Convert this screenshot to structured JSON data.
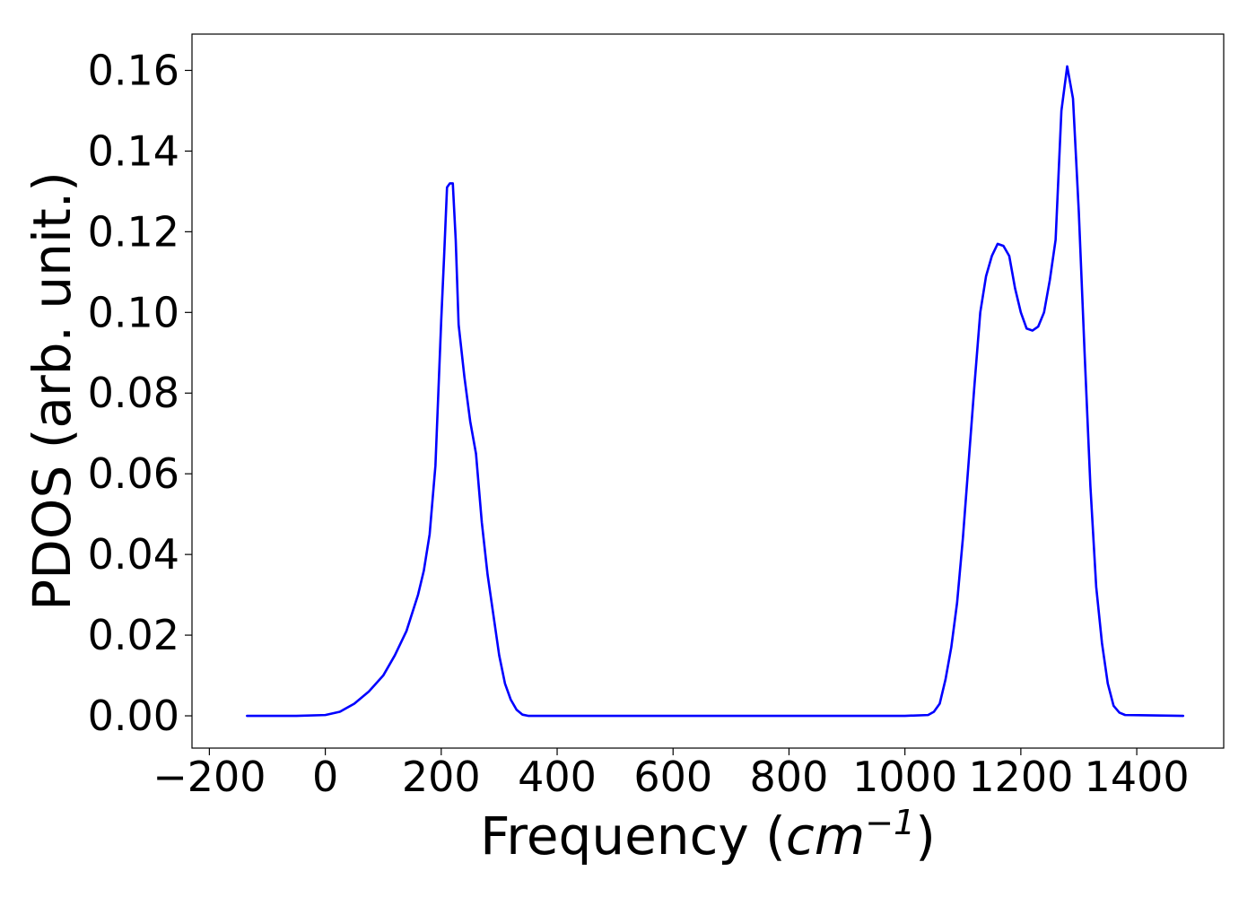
{
  "chart_data": {
    "type": "line",
    "xlabel_prefix": "Frequency (",
    "xlabel_unit": "cm",
    "xlabel_exponent": "−1",
    "xlabel_suffix": ")",
    "ylabel": "PDOS (arb. unit.)",
    "xlim": [
      -230,
      1550
    ],
    "ylim": [
      -0.008,
      0.169
    ],
    "xticks": [
      -200,
      0,
      200,
      400,
      600,
      800,
      1000,
      1200,
      1400
    ],
    "xtick_labels": [
      "−200",
      "0",
      "200",
      "400",
      "600",
      "800",
      "1000",
      "1200",
      "1400"
    ],
    "yticks": [
      0.0,
      0.02,
      0.04,
      0.06,
      0.08,
      0.1,
      0.12,
      0.14,
      0.16
    ],
    "ytick_labels": [
      "0.00",
      "0.02",
      "0.04",
      "0.06",
      "0.08",
      "0.10",
      "0.12",
      "0.14",
      "0.16"
    ],
    "grid": false,
    "colors": {
      "line": "#0000ff",
      "axes": "#000000"
    },
    "series": [
      {
        "x": [
          -135,
          -50,
          0,
          25,
          50,
          75,
          100,
          120,
          140,
          160,
          170,
          180,
          190,
          195,
          200,
          205,
          210,
          215,
          220,
          225,
          230,
          240,
          250,
          260,
          270,
          280,
          290,
          300,
          310,
          320,
          330,
          340,
          350,
          360,
          380,
          500,
          700,
          900,
          1000,
          1040,
          1050,
          1060,
          1070,
          1080,
          1090,
          1100,
          1110,
          1120,
          1130,
          1140,
          1150,
          1160,
          1170,
          1180,
          1190,
          1200,
          1210,
          1220,
          1230,
          1240,
          1250,
          1260,
          1270,
          1280,
          1290,
          1300,
          1310,
          1320,
          1330,
          1340,
          1350,
          1360,
          1370,
          1380,
          1480
        ],
        "y": [
          0.0,
          0.0,
          0.0002,
          0.001,
          0.003,
          0.006,
          0.01,
          0.015,
          0.021,
          0.03,
          0.036,
          0.045,
          0.062,
          0.08,
          0.098,
          0.114,
          0.131,
          0.132,
          0.132,
          0.118,
          0.097,
          0.084,
          0.073,
          0.065,
          0.048,
          0.035,
          0.025,
          0.015,
          0.008,
          0.004,
          0.0015,
          0.0003,
          0.0,
          0.0,
          0.0,
          0.0,
          0.0,
          0.0,
          0.0,
          0.0002,
          0.001,
          0.003,
          0.009,
          0.017,
          0.028,
          0.044,
          0.063,
          0.082,
          0.1,
          0.109,
          0.114,
          0.117,
          0.1165,
          0.114,
          0.106,
          0.1,
          0.096,
          0.0955,
          0.0965,
          0.1,
          0.108,
          0.118,
          0.15,
          0.161,
          0.153,
          0.125,
          0.09,
          0.057,
          0.032,
          0.018,
          0.008,
          0.0025,
          0.0008,
          0.0002,
          0.0
        ]
      }
    ]
  }
}
